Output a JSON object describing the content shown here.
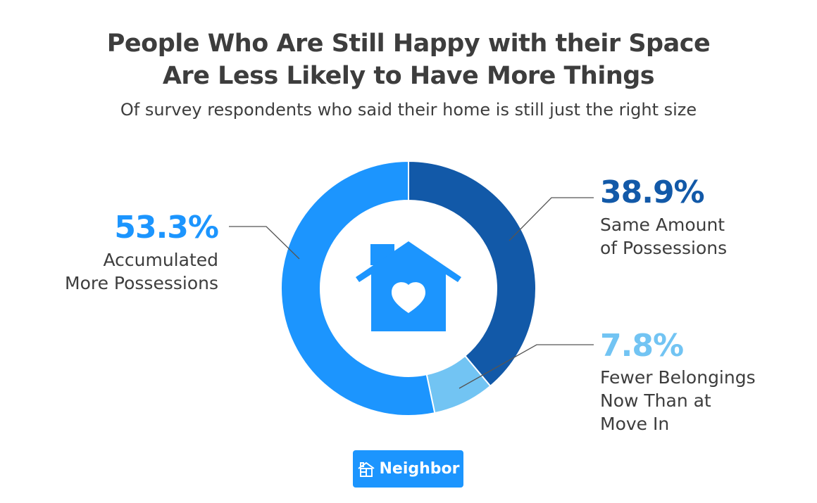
{
  "chart_data": {
    "type": "pie",
    "variant": "donut",
    "title": [
      "People Who Are Still Happy with their Space",
      "Are Less Likely to Have More Things"
    ],
    "subtitle": "Of survey respondents who said their home is still just the right size",
    "slices": [
      {
        "value": 38.9,
        "label": "38.9%",
        "name_lines": [
          "Same Amount",
          "of Possessions"
        ],
        "color": "#1259A8"
      },
      {
        "value": 7.8,
        "label": "7.8%",
        "name_lines": [
          "Fewer Belongings",
          "Now Than at",
          "Move In"
        ],
        "color": "#72C4F3"
      },
      {
        "value": 53.3,
        "label": "53.3%",
        "name_lines": [
          "Accumulated",
          "More Possessions"
        ],
        "color": "#1C95FE"
      }
    ],
    "center_icon": "house-heart-icon"
  },
  "logo": {
    "text": "Neighbor",
    "icon": "house-logo-icon",
    "color": "#1C95FE"
  }
}
